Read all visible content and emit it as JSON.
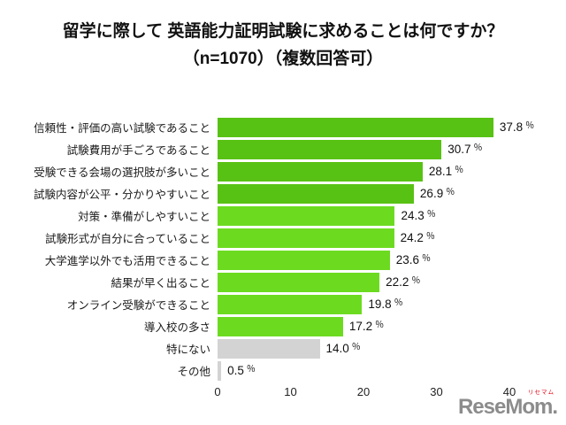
{
  "title": {
    "line1": "留学に際して 英語能力証明試験に求めることは何ですか？",
    "line2": "（n=1070）（複数回答可）"
  },
  "chart_data": {
    "type": "bar",
    "orientation": "horizontal",
    "title": "留学に際して 英語能力証明試験に求めることは何ですか？（n=1070）（複数回答可）",
    "n": 1070,
    "categories": [
      "信頼性・評価の高い試験であること",
      "試験費用が手ごろであること",
      "受験できる会場の選択肢が多いこと",
      "試験内容が公平・分かりやすいこと",
      "対策・準備がしやすいこと",
      "試験形式が自分に合っていること",
      "大学進学以外でも活用できること",
      "結果が早く出ること",
      "オンライン受験ができること",
      "導入校の多さ",
      "特にない",
      "その他"
    ],
    "values": [
      37.8,
      30.7,
      28.1,
      26.9,
      24.3,
      24.2,
      23.6,
      22.2,
      19.8,
      17.2,
      14.0,
      0.5
    ],
    "value_labels": [
      "37.8",
      "30.7",
      "28.1",
      "26.9",
      "24.3",
      "24.2",
      "23.6",
      "22.2",
      "19.8",
      "17.2",
      "14.0",
      "0.5"
    ],
    "unit": "％",
    "xlim": [
      0,
      40
    ],
    "xticks": [
      "0",
      "10",
      "20",
      "30",
      "40"
    ],
    "grid": false,
    "legend": false,
    "bar_color_roles": [
      "green-dark",
      "green-dark",
      "green-dark",
      "green-dark",
      "green-light",
      "green-light",
      "green-light",
      "green-light",
      "green-light",
      "green-light",
      "gray",
      "gray"
    ],
    "colors": {
      "green-dark": "#58C214",
      "green-light": "#6CDB20",
      "gray": "#D3D3D3"
    }
  },
  "footer": {
    "logo_text": "ReseMom.",
    "logo_ruby": "リセマム",
    "logo_color": "#8C8C8C",
    "ruby_color": "#E50012"
  }
}
